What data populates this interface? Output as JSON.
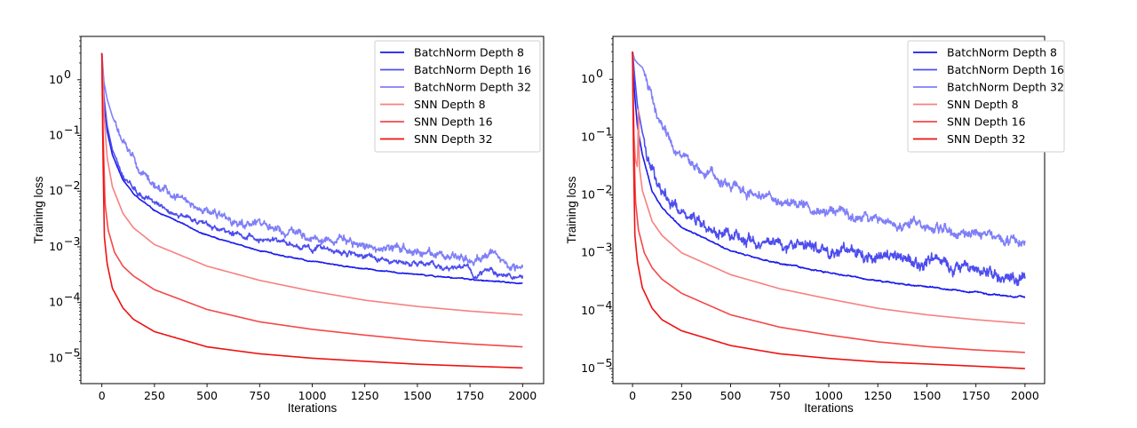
{
  "chart_data": [
    {
      "type": "line",
      "title": "",
      "xlabel": "Iterations",
      "ylabel": "Training loss",
      "yscale": "log",
      "xlim": [
        -100,
        2100
      ],
      "ylim": [
        3.5e-06,
        6
      ],
      "xticks": [
        0,
        250,
        500,
        750,
        1000,
        1250,
        1500,
        1750,
        2000
      ],
      "xtick_labels": [
        "0",
        "250",
        "500",
        "750",
        "1000",
        "1250",
        "1500",
        "1750",
        "2000"
      ],
      "yticks": [
        1,
        0.1,
        0.01,
        0.001,
        0.0001,
        1e-05
      ],
      "ytick_labels": [
        [
          "10",
          "0"
        ],
        [
          "10",
          "−1"
        ],
        [
          "10",
          "−2"
        ],
        [
          "10",
          "−3"
        ],
        [
          "10",
          "−4"
        ],
        [
          "10",
          "−5"
        ]
      ],
      "grid": false,
      "legend_position": "top-right",
      "series": [
        {
          "name": "BatchNorm Depth 8",
          "color": "#1a1aee",
          "noise": 0.01,
          "x": [
            0,
            10,
            25,
            50,
            100,
            150,
            250,
            500,
            750,
            1000,
            1250,
            1500,
            1750,
            2000
          ],
          "values": [
            3.0,
            0.4,
            0.12,
            0.045,
            0.016,
            0.009,
            0.0045,
            0.0016,
            0.00085,
            0.00055,
            0.0004,
            0.00032,
            0.00026,
            0.00022
          ]
        },
        {
          "name": "BatchNorm Depth 16",
          "color": "#4d4def",
          "noise": 0.05,
          "x": [
            0,
            10,
            25,
            50,
            100,
            150,
            250,
            500,
            750,
            1000,
            1250,
            1500,
            1750,
            1770,
            1800,
            2000
          ],
          "values": [
            3.0,
            0.5,
            0.15,
            0.055,
            0.02,
            0.011,
            0.006,
            0.0024,
            0.0014,
            0.001,
            0.0007,
            0.00048,
            0.00042,
            0.00028,
            0.00036,
            0.00028
          ]
        },
        {
          "name": "BatchNorm Depth 32",
          "color": "#7f7ff8",
          "noise": 0.08,
          "x": [
            0,
            10,
            25,
            50,
            100,
            150,
            250,
            500,
            750,
            1000,
            1250,
            1500,
            1750,
            1850,
            1950,
            2000
          ],
          "values": [
            3.0,
            0.9,
            0.45,
            0.22,
            0.075,
            0.035,
            0.012,
            0.004,
            0.0024,
            0.0015,
            0.0011,
            0.00085,
            0.00062,
            0.00075,
            0.00042,
            0.0005
          ]
        },
        {
          "name": "SNN Depth 8",
          "color": "#f88080",
          "noise": 0,
          "x": [
            0,
            10,
            25,
            50,
            100,
            150,
            250,
            500,
            750,
            1000,
            1250,
            1500,
            1750,
            2000
          ],
          "values": [
            3.0,
            0.25,
            0.04,
            0.012,
            0.004,
            0.0022,
            0.0011,
            0.00045,
            0.00025,
            0.00016,
            0.00011,
            8.5e-05,
            7e-05,
            6e-05
          ]
        },
        {
          "name": "SNN Depth 16",
          "color": "#f54747",
          "noise": 0,
          "x": [
            0,
            5,
            15,
            30,
            60,
            100,
            150,
            250,
            500,
            750,
            1000,
            1250,
            1500,
            1750,
            2000
          ],
          "values": [
            3.0,
            0.15,
            0.006,
            0.002,
            0.0008,
            0.00045,
            0.0003,
            0.00017,
            7.5e-05,
            4.5e-05,
            3.3e-05,
            2.6e-05,
            2.1e-05,
            1.8e-05,
            1.6e-05
          ]
        },
        {
          "name": "SNN Depth 32",
          "color": "#ee1111",
          "noise": 0,
          "x": [
            0,
            5,
            12,
            25,
            50,
            100,
            150,
            250,
            500,
            750,
            1000,
            1250,
            1500,
            1750,
            2000
          ],
          "values": [
            3.0,
            0.05,
            0.0015,
            0.0005,
            0.00018,
            8e-05,
            5e-05,
            3e-05,
            1.6e-05,
            1.2e-05,
            1e-05,
            8.8e-06,
            7.8e-06,
            7.2e-06,
            6.7e-06
          ]
        }
      ]
    },
    {
      "type": "line",
      "title": "",
      "xlabel": "Iterations",
      "ylabel": "Training loss",
      "yscale": "log",
      "xlim": [
        -100,
        2100
      ],
      "ylim": [
        5.5e-06,
        5.5
      ],
      "xticks": [
        0,
        250,
        500,
        750,
        1000,
        1250,
        1500,
        1750,
        2000
      ],
      "xtick_labels": [
        "0",
        "250",
        "500",
        "750",
        "1000",
        "1250",
        "1500",
        "1750",
        "2000"
      ],
      "yticks": [
        1,
        0.1,
        0.01,
        0.001,
        0.0001,
        1e-05
      ],
      "ytick_labels": [
        [
          "10",
          "0"
        ],
        [
          "10",
          "−1"
        ],
        [
          "10",
          "−2"
        ],
        [
          "10",
          "−3"
        ],
        [
          "10",
          "−4"
        ],
        [
          "10",
          "−5"
        ]
      ],
      "grid": false,
      "legend_position": "top-right",
      "series": [
        {
          "name": "BatchNorm Depth 8",
          "color": "#1a1aee",
          "noise": 0.012,
          "x": [
            0,
            10,
            25,
            50,
            100,
            150,
            250,
            500,
            750,
            1000,
            1250,
            1500,
            1750,
            1900,
            2000
          ],
          "values": [
            3.0,
            0.6,
            0.15,
            0.05,
            0.012,
            0.006,
            0.0028,
            0.0011,
            0.00065,
            0.00045,
            0.00033,
            0.00026,
            0.00021,
            0.00018,
            0.00017
          ]
        },
        {
          "name": "BatchNorm Depth 16",
          "color": "#4d4def",
          "noise": 0.11,
          "x": [
            0,
            10,
            25,
            50,
            100,
            150,
            250,
            400,
            500,
            750,
            1000,
            1250,
            1500,
            1750,
            1900,
            2000
          ],
          "values": [
            3.0,
            1.2,
            0.35,
            0.12,
            0.03,
            0.012,
            0.0045,
            0.0025,
            0.0018,
            0.0013,
            0.0011,
            0.00085,
            0.00062,
            0.00055,
            0.00028,
            0.00035
          ]
        },
        {
          "name": "BatchNorm Depth 32",
          "color": "#7f7ff8",
          "noise": 0.09,
          "x": [
            0,
            10,
            25,
            50,
            75,
            100,
            150,
            200,
            250,
            350,
            500,
            750,
            1000,
            1250,
            1500,
            1750,
            2000
          ],
          "values": [
            3.0,
            2.2,
            1.9,
            1.6,
            1.0,
            0.45,
            0.14,
            0.07,
            0.045,
            0.025,
            0.015,
            0.008,
            0.0055,
            0.0038,
            0.0028,
            0.0021,
            0.0016
          ]
        },
        {
          "name": "SNN Depth 8",
          "color": "#f88080",
          "noise": 0,
          "x": [
            0,
            8,
            15,
            25,
            30,
            35,
            50,
            100,
            150,
            250,
            500,
            750,
            1000,
            1250,
            1500,
            1750,
            2000
          ],
          "values": [
            3.0,
            0.1,
            0.04,
            0.03,
            0.3,
            0.03,
            0.012,
            0.0035,
            0.002,
            0.001,
            0.00042,
            0.00024,
            0.00016,
            0.00011,
            8.5e-05,
            7e-05,
            6e-05
          ]
        },
        {
          "name": "SNN Depth 16",
          "color": "#f54747",
          "noise": 0,
          "x": [
            0,
            5,
            15,
            30,
            60,
            100,
            150,
            250,
            500,
            750,
            1000,
            1250,
            1500,
            1750,
            2000
          ],
          "values": [
            3.0,
            0.15,
            0.008,
            0.0025,
            0.001,
            0.00055,
            0.00035,
            0.0002,
            8.5e-05,
            5.2e-05,
            3.8e-05,
            2.9e-05,
            2.4e-05,
            2.1e-05,
            1.9e-05
          ]
        },
        {
          "name": "SNN Depth 32",
          "color": "#ee1111",
          "noise": 0,
          "x": [
            0,
            5,
            12,
            25,
            50,
            100,
            150,
            250,
            500,
            750,
            1000,
            1250,
            1500,
            1750,
            2000
          ],
          "values": [
            3.0,
            0.05,
            0.002,
            0.0007,
            0.00025,
            0.00011,
            7e-05,
            4.5e-05,
            2.5e-05,
            1.8e-05,
            1.5e-05,
            1.3e-05,
            1.2e-05,
            1.1e-05,
            1e-05
          ]
        }
      ]
    }
  ]
}
